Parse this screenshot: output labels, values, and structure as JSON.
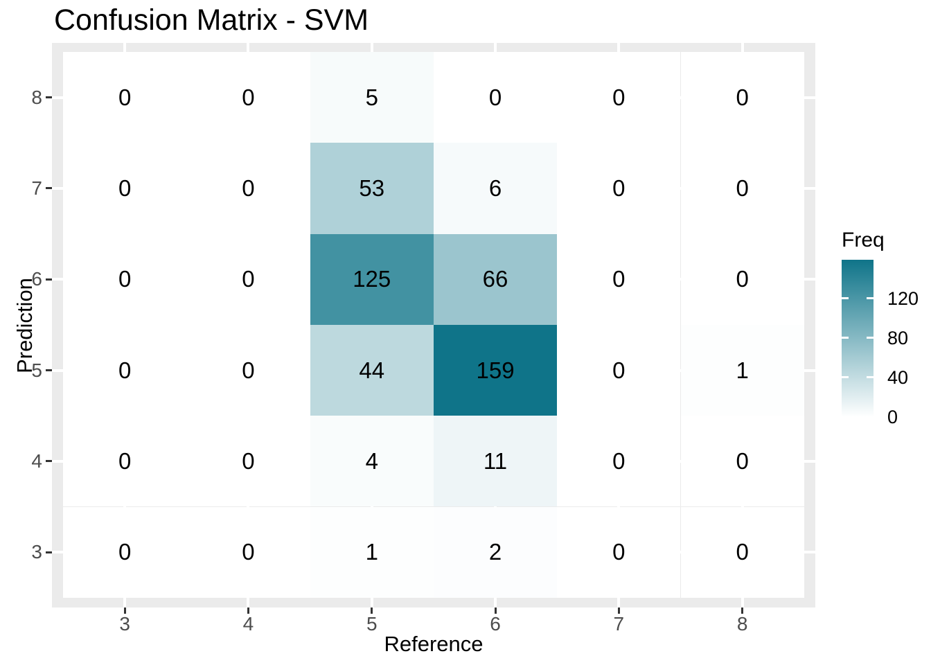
{
  "chart_data": {
    "type": "heatmap",
    "title": "Confusion Matrix - SVM",
    "xlabel": "Reference",
    "ylabel": "Prediction",
    "x_categories": [
      "3",
      "4",
      "5",
      "6",
      "7",
      "8"
    ],
    "y_categories_top_to_bottom": [
      "8",
      "7",
      "6",
      "5",
      "4",
      "3"
    ],
    "rows": [
      {
        "prediction": "8",
        "values": [
          0,
          0,
          5,
          0,
          0,
          0
        ]
      },
      {
        "prediction": "7",
        "values": [
          0,
          0,
          53,
          6,
          0,
          0
        ]
      },
      {
        "prediction": "6",
        "values": [
          0,
          0,
          125,
          66,
          0,
          0
        ]
      },
      {
        "prediction": "5",
        "values": [
          0,
          0,
          44,
          159,
          0,
          1
        ]
      },
      {
        "prediction": "4",
        "values": [
          0,
          0,
          4,
          11,
          0,
          0
        ]
      },
      {
        "prediction": "3",
        "values": [
          0,
          0,
          1,
          2,
          0,
          0
        ]
      }
    ],
    "fill_scale": {
      "title": "Freq",
      "low_color": "#FFFFFF",
      "high_color": "#0F7489",
      "limit_min": 0,
      "limit_max": 159,
      "ticks": [
        120,
        80,
        40,
        0
      ]
    },
    "legend_position": "right",
    "panel_background": "#EBEBEB",
    "gridline_color": "#FFFFFF",
    "tick_label_color": "#4D4D4D"
  }
}
